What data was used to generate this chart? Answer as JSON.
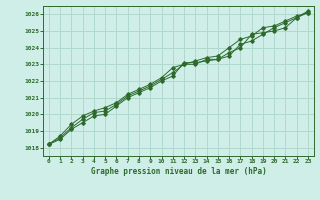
{
  "title": "Graphe pression niveau de la mer (hPa)",
  "background_color": "#d0eee8",
  "grid_color": "#b0d8cc",
  "line_color": "#2d6a2d",
  "x_ticks": [
    0,
    1,
    2,
    3,
    4,
    5,
    6,
    7,
    8,
    9,
    10,
    11,
    12,
    13,
    14,
    15,
    16,
    17,
    18,
    19,
    20,
    21,
    22,
    23
  ],
  "ylim": [
    1017.5,
    1026.5
  ],
  "xlim": [
    -0.5,
    23.5
  ],
  "yticks": [
    1018,
    1019,
    1020,
    1021,
    1022,
    1023,
    1024,
    1025,
    1026
  ],
  "series1": [
    1018.2,
    1018.5,
    1019.1,
    1019.5,
    1019.9,
    1020.0,
    1020.5,
    1021.0,
    1021.3,
    1021.6,
    1022.0,
    1022.3,
    1023.1,
    1023.1,
    1023.2,
    1023.3,
    1023.5,
    1024.2,
    1024.4,
    1024.8,
    1025.2,
    1025.5,
    1025.8,
    1026.1
  ],
  "series2": [
    1018.2,
    1018.7,
    1019.4,
    1019.9,
    1020.2,
    1020.4,
    1020.7,
    1021.2,
    1021.5,
    1021.8,
    1022.2,
    1022.8,
    1023.0,
    1023.0,
    1023.3,
    1023.3,
    1023.7,
    1024.0,
    1024.8,
    1024.9,
    1025.0,
    1025.2,
    1025.8,
    1026.2
  ],
  "series3": [
    1018.2,
    1018.6,
    1019.2,
    1019.7,
    1020.1,
    1020.2,
    1020.6,
    1021.1,
    1021.4,
    1021.7,
    1022.1,
    1022.5,
    1023.0,
    1023.2,
    1023.4,
    1023.5,
    1024.0,
    1024.5,
    1024.7,
    1025.2,
    1025.3,
    1025.6,
    1025.9,
    1026.1
  ]
}
